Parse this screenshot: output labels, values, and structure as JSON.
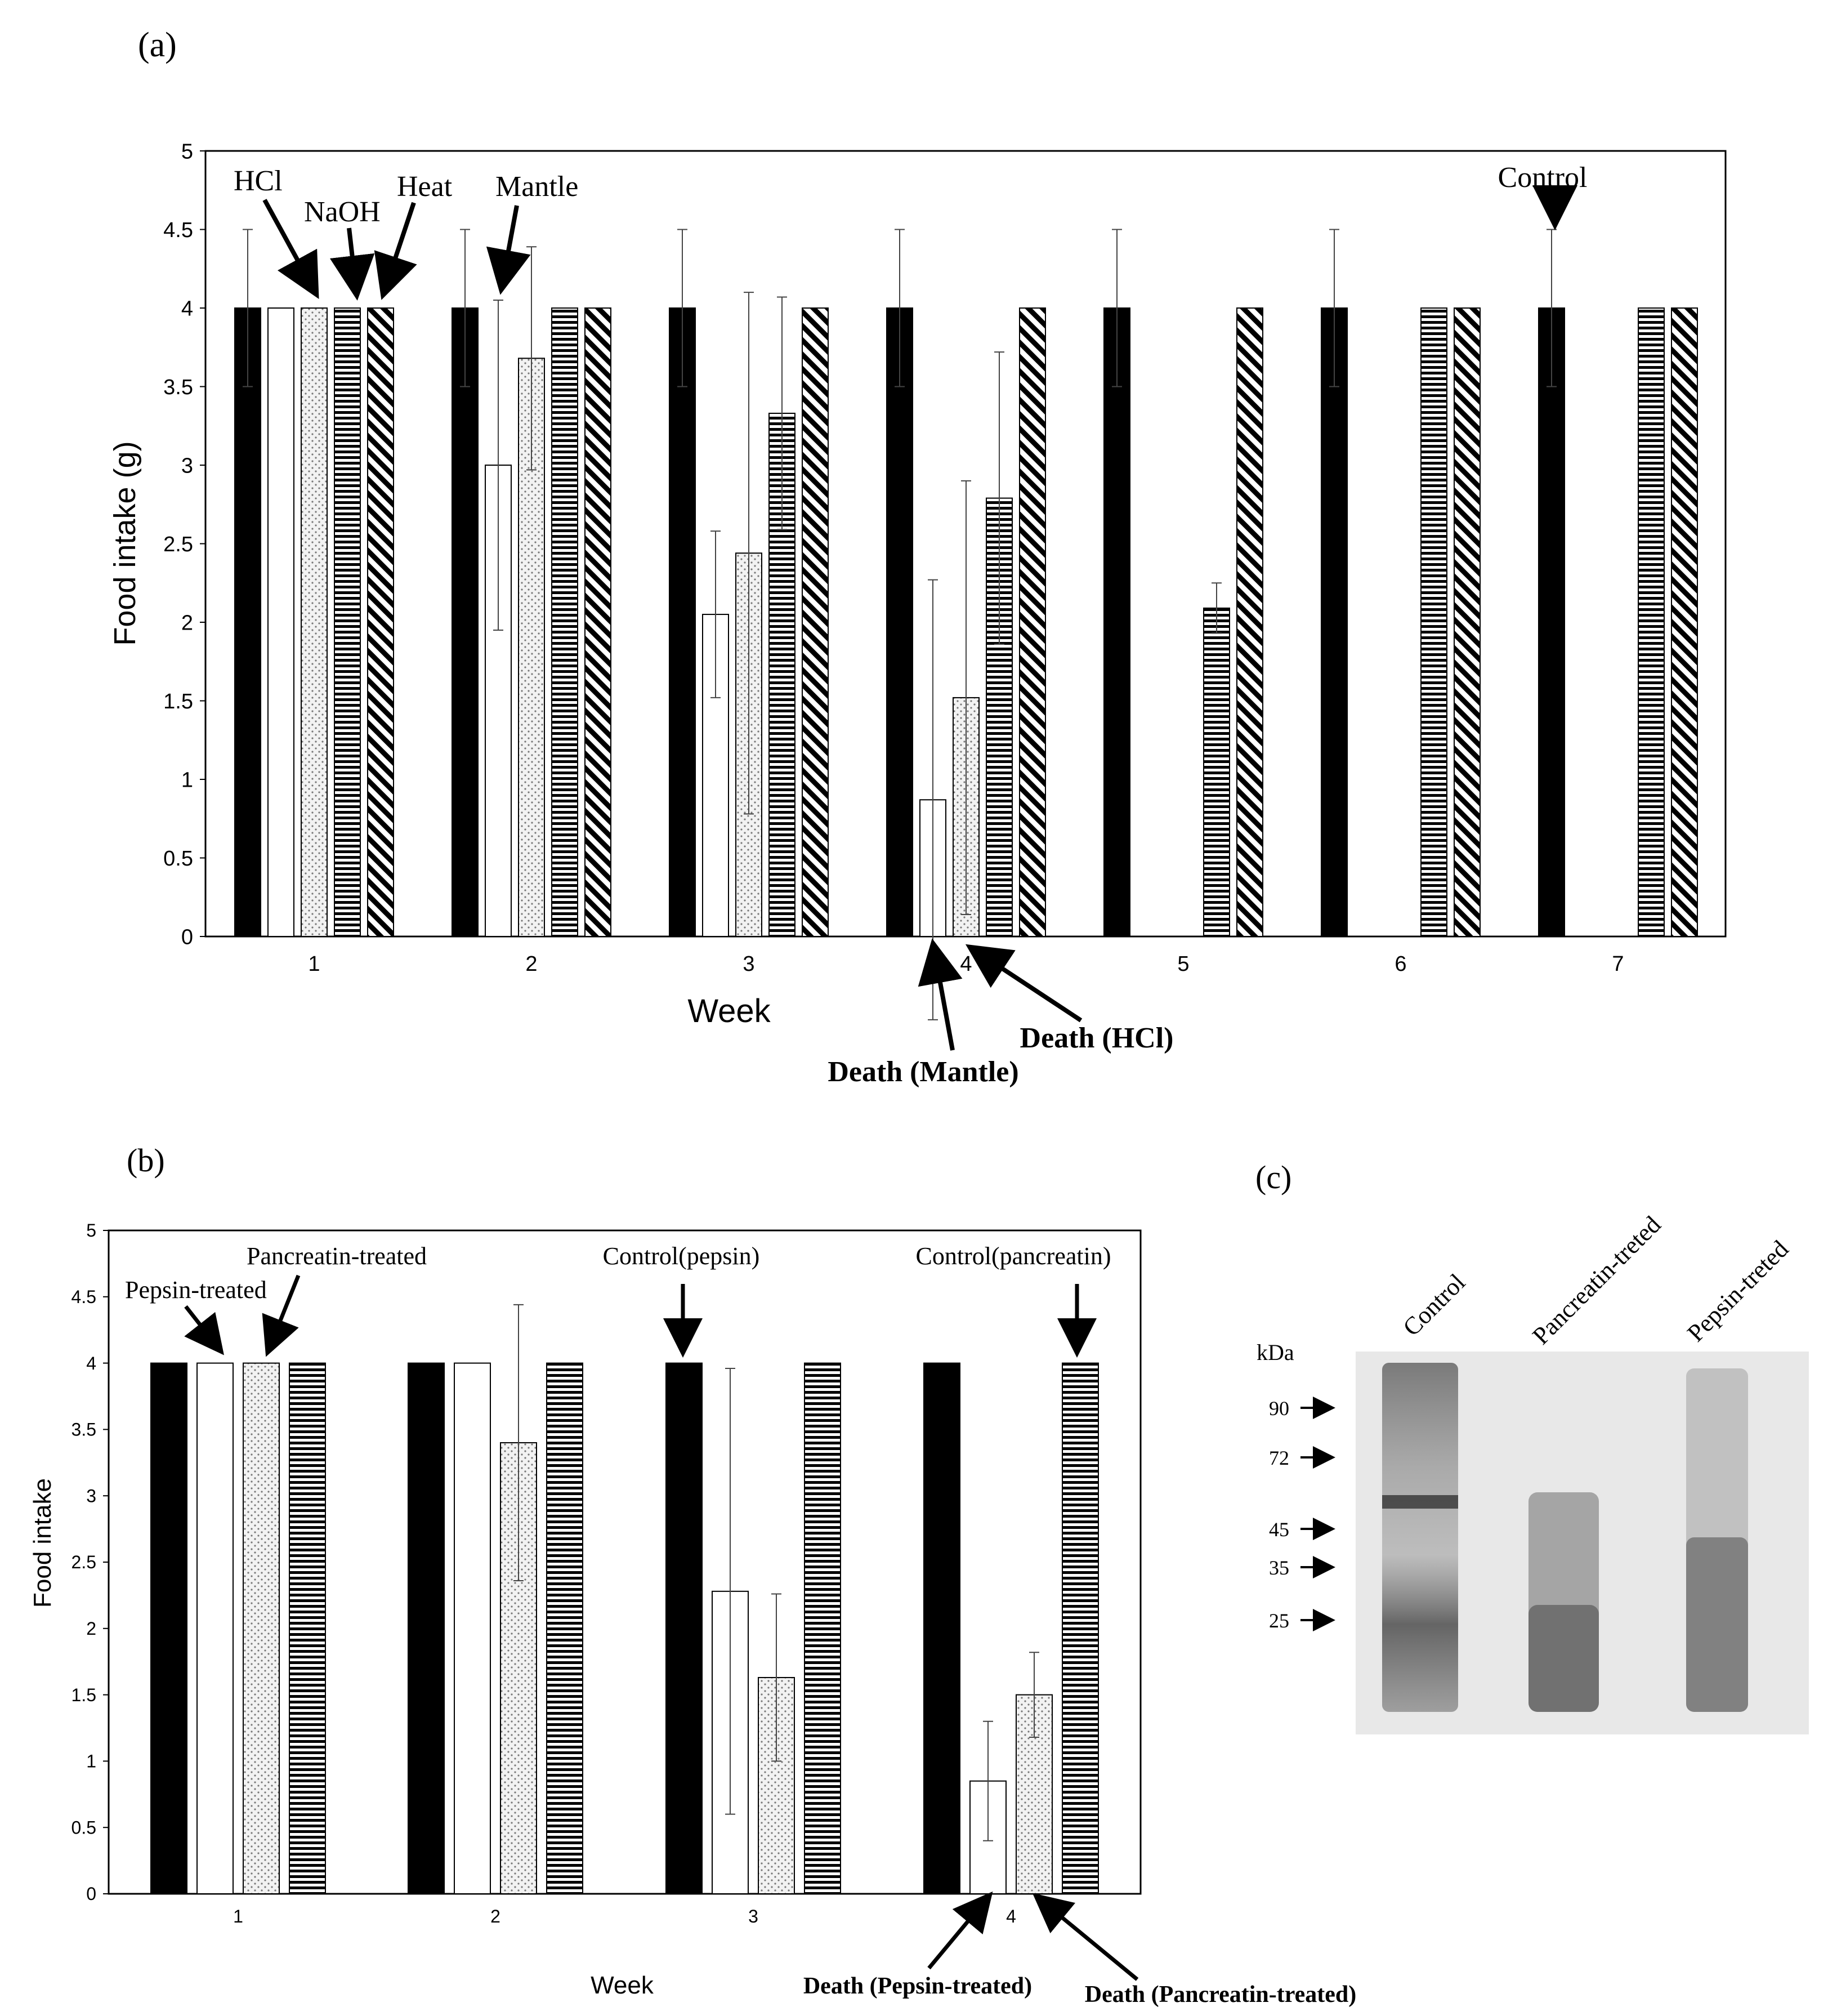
{
  "panels": {
    "a_label": "(a)",
    "b_label": "(b)",
    "c_label": "(c)"
  },
  "chart_data": [
    {
      "id": "a",
      "type": "bar",
      "xlabel": "Week",
      "ylabel": "Food intake (g)",
      "ylim": [
        0,
        5
      ],
      "yticks": [
        "0",
        "0.5",
        "1",
        "1.5",
        "2",
        "2.5",
        "3",
        "3.5",
        "4",
        "4.5",
        "5"
      ],
      "categories": [
        "1",
        "2",
        "3",
        "4",
        "5",
        "6",
        "7"
      ],
      "series": [
        {
          "pattern": "solid",
          "values": [
            4,
            4,
            4,
            4,
            4,
            4,
            4
          ],
          "errors": [
            0.5,
            0.5,
            0.5,
            0.5,
            0.5,
            0.5,
            0.5
          ]
        },
        {
          "pattern": "white",
          "values": [
            4,
            3.0,
            2.05,
            0.87,
            null,
            null,
            null
          ],
          "errors": [
            null,
            1.05,
            0.53,
            1.4,
            null,
            null,
            null
          ]
        },
        {
          "pattern": "dots",
          "values": [
            4,
            3.68,
            2.44,
            1.52,
            null,
            null,
            null
          ],
          "errors": [
            null,
            0.71,
            1.66,
            1.38,
            null,
            null,
            null
          ]
        },
        {
          "pattern": "hlines",
          "values": [
            4,
            4,
            3.33,
            2.79,
            2.09,
            4,
            4
          ],
          "errors": [
            null,
            null,
            0.74,
            0.93,
            0.16,
            null,
            null
          ]
        },
        {
          "pattern": "diagonal",
          "values": [
            4,
            4,
            4,
            4,
            4,
            4,
            4
          ],
          "errors": [
            null,
            null,
            null,
            null,
            null,
            null,
            null
          ]
        }
      ],
      "annotations": [
        {
          "text": "HCl",
          "bold": false,
          "week": 1,
          "series": 2
        },
        {
          "text": "NaOH",
          "bold": false,
          "week": 1,
          "series": 3
        },
        {
          "text": "Heat",
          "bold": false,
          "week": 1,
          "series": 4
        },
        {
          "text": "Mantle",
          "bold": false,
          "week": 2,
          "series": 1
        },
        {
          "text": "Control",
          "bold": false,
          "week": 7,
          "series": 0
        },
        {
          "text": "Death (Mantle)",
          "bold": true,
          "week": 4,
          "series": 1
        },
        {
          "text": "Death (HCl)",
          "bold": true,
          "week": 4,
          "series": 2
        }
      ]
    },
    {
      "id": "b",
      "type": "bar",
      "xlabel": "Week",
      "ylabel": "Food intake",
      "ylim": [
        0,
        5
      ],
      "yticks": [
        "0",
        "0.5",
        "1",
        "1.5",
        "2",
        "2.5",
        "3",
        "3.5",
        "4",
        "4.5",
        "5"
      ],
      "categories": [
        "1",
        "2",
        "3",
        "4"
      ],
      "series": [
        {
          "pattern": "solid",
          "values": [
            4,
            4,
            4,
            4
          ],
          "errors": [
            null,
            null,
            null,
            null
          ]
        },
        {
          "pattern": "white",
          "values": [
            4,
            4,
            2.28,
            0.85
          ],
          "errors": [
            null,
            null,
            1.68,
            0.45
          ]
        },
        {
          "pattern": "dots",
          "values": [
            4,
            3.4,
            1.63,
            1.5
          ],
          "errors": [
            null,
            1.04,
            0.63,
            0.32
          ]
        },
        {
          "pattern": "hlines",
          "values": [
            4,
            4,
            4,
            4
          ],
          "errors": [
            null,
            null,
            null,
            null
          ]
        }
      ],
      "annotations": [
        {
          "text": "Pepsin-treated",
          "bold": false,
          "week": 1,
          "series": 1
        },
        {
          "text": "Pancreatin-treated",
          "bold": false,
          "week": 1,
          "series": 2
        },
        {
          "text": "Control(pepsin)",
          "bold": false,
          "week": 3,
          "series": 0
        },
        {
          "text": "Control(pancreatin)",
          "bold": false,
          "week": 4,
          "series": 3
        },
        {
          "text": "Death (Pepsin-treated)",
          "bold": true,
          "week": 4,
          "series": 1
        },
        {
          "text": "Death (Pancreatin-treated)",
          "bold": true,
          "week": 4,
          "series": 2
        }
      ]
    }
  ],
  "gel": {
    "unit": "kDa",
    "lanes": [
      "Control",
      "Pancreatin-treted",
      "Pepsin-treted"
    ],
    "markers": [
      "90",
      "72",
      "45",
      "35",
      "25"
    ]
  }
}
